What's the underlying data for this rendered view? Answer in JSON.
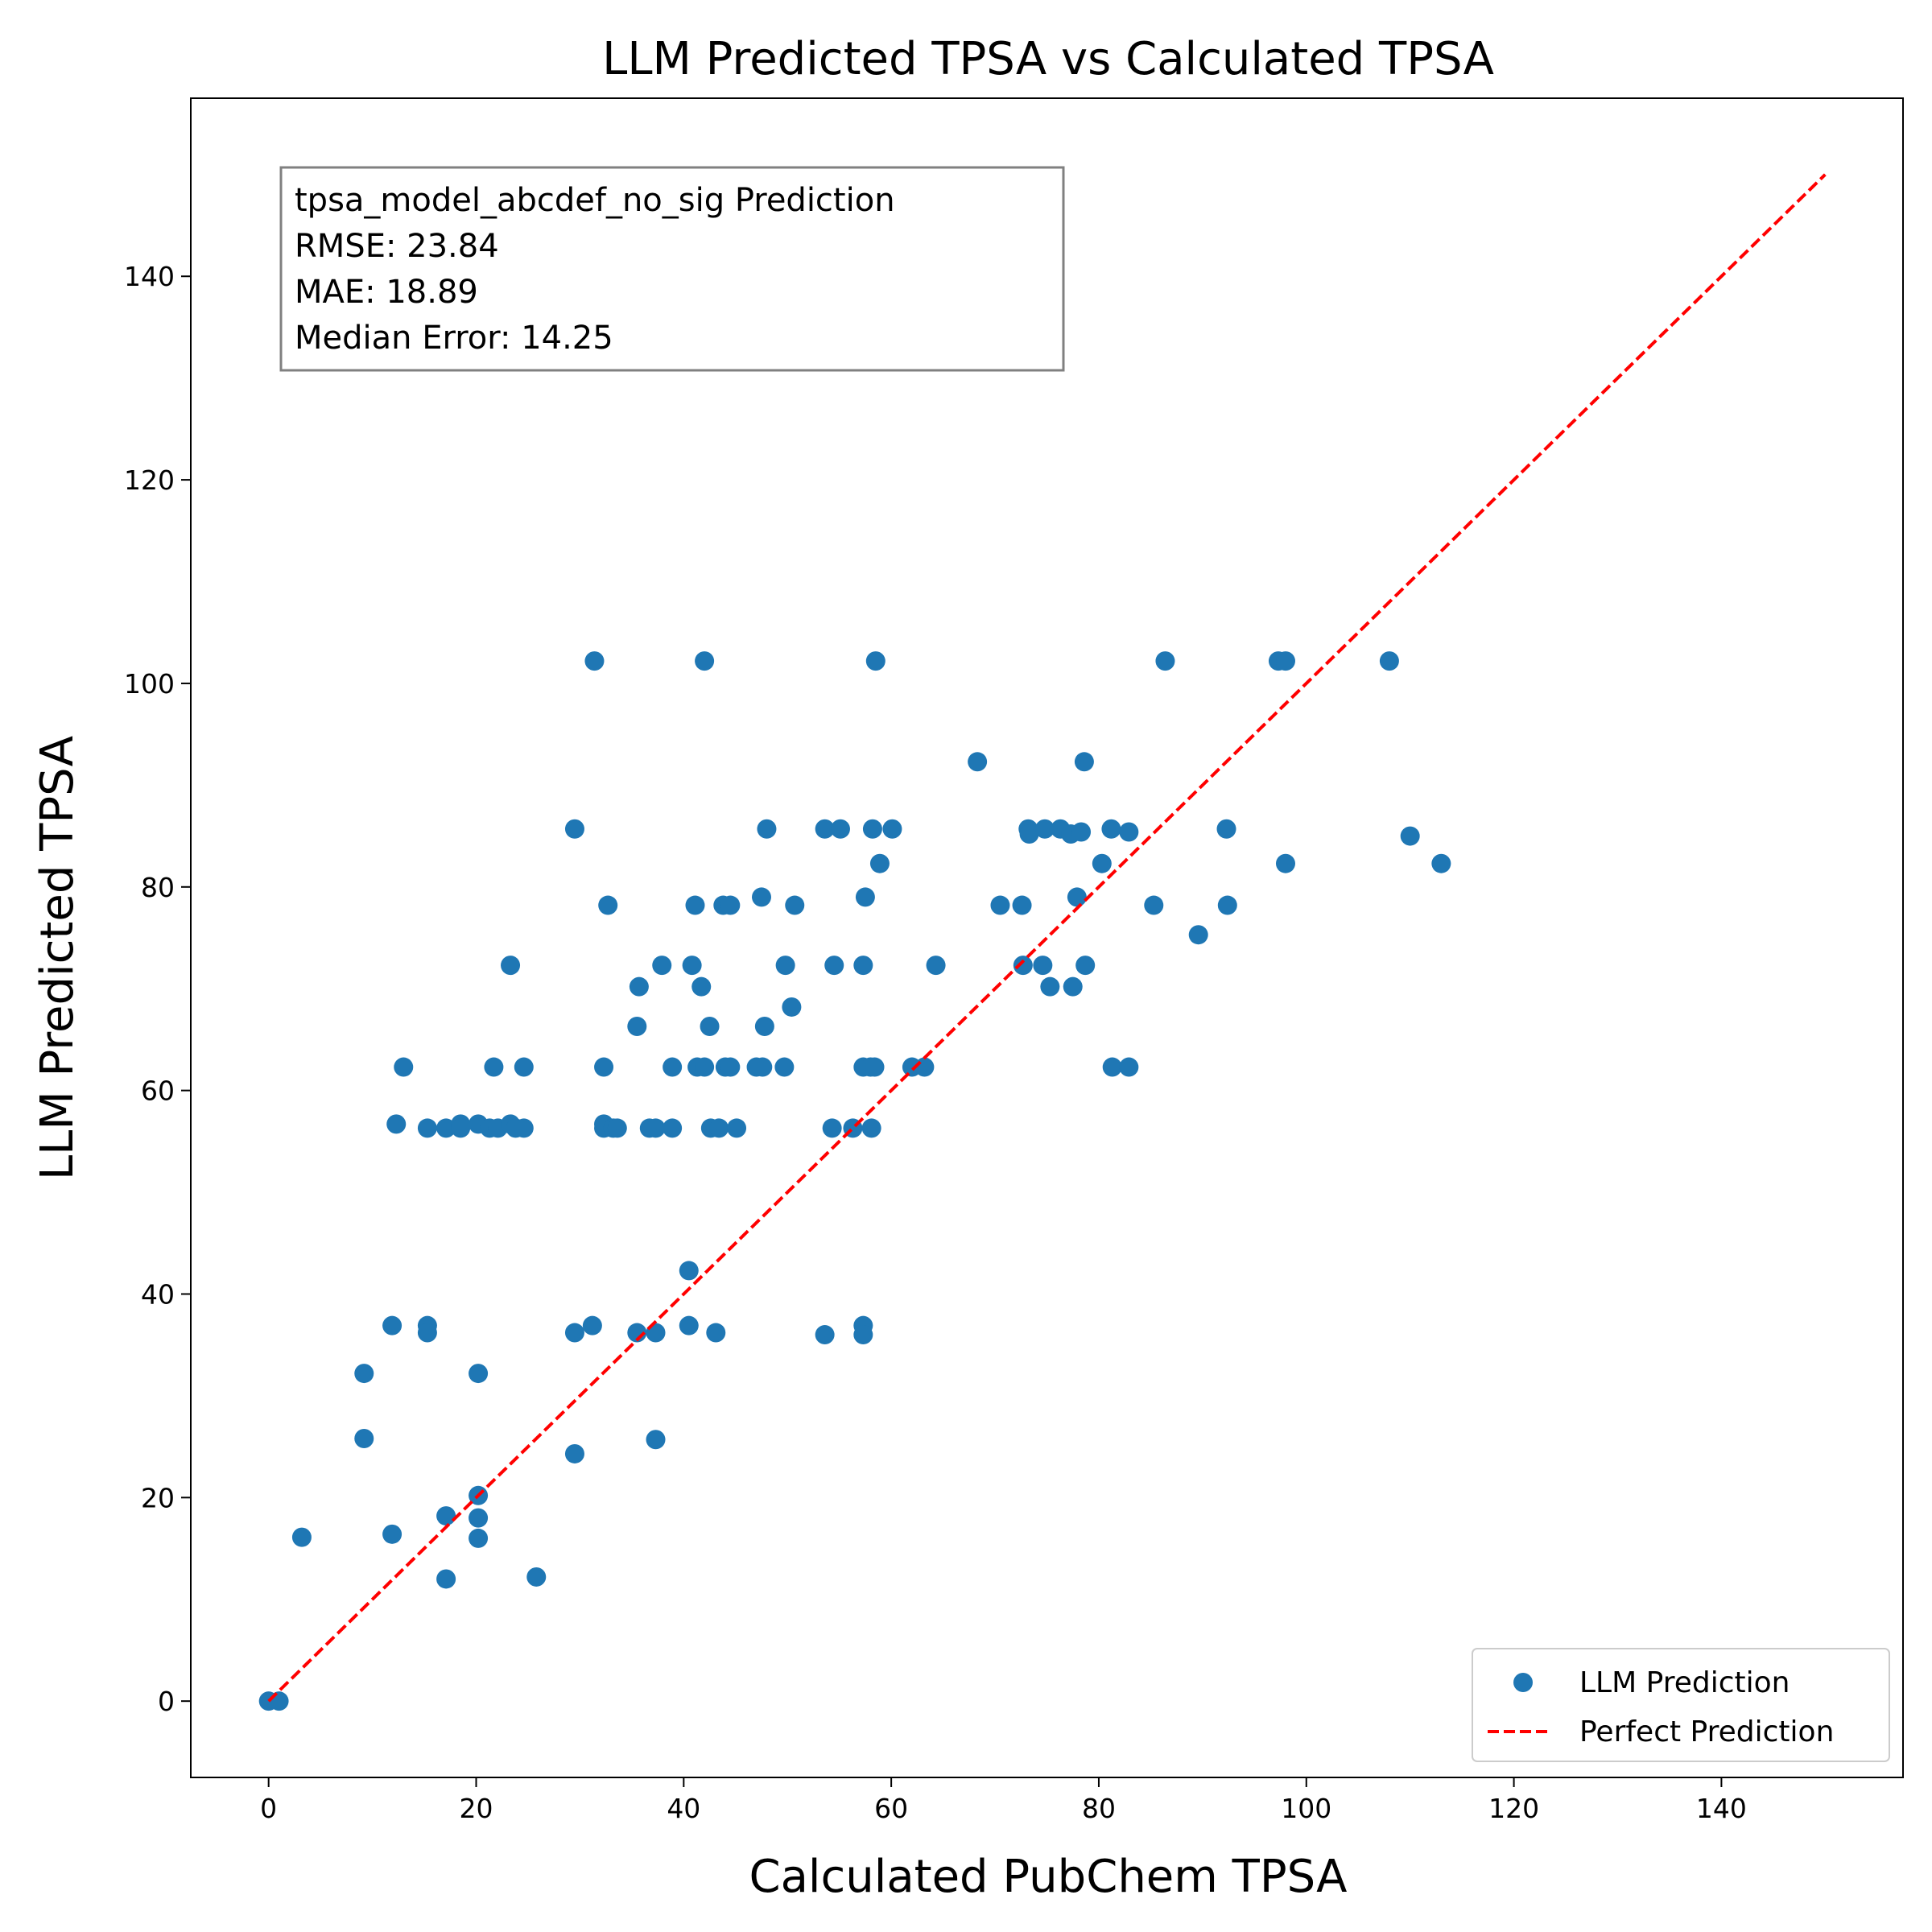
{
  "chart_data": {
    "type": "scatter",
    "title": "LLM Predicted TPSA vs Calculated TPSA",
    "xlabel": "Calculated PubChem TPSA",
    "ylabel": "LLM Predicted TPSA",
    "xlim": [
      -7.5,
      157.5
    ],
    "ylim": [
      -7.5,
      157.5
    ],
    "xticks": [
      0,
      20,
      40,
      60,
      80,
      100,
      120,
      140
    ],
    "yticks": [
      0,
      20,
      40,
      60,
      80,
      100,
      120,
      140
    ],
    "grid": false,
    "legend_position": "bottom-right",
    "stats_box": {
      "lines": [
        "tpsa_model_abcdef_no_sig Prediction",
        "RMSE: 23.84",
        "MAE: 18.89",
        "Median Error: 14.25"
      ]
    },
    "series": [
      {
        "name": "LLM Prediction",
        "kind": "scatter",
        "color": "#1f77b4",
        "points": [
          [
            0,
            0
          ],
          [
            1.0,
            0
          ],
          [
            3.2,
            16.1
          ],
          [
            9.2,
            32.2
          ],
          [
            9.2,
            25.8
          ],
          [
            11.9,
            36.9
          ],
          [
            11.9,
            16.4
          ],
          [
            12.3,
            56.7
          ],
          [
            13.0,
            62.3
          ],
          [
            15.3,
            56.3
          ],
          [
            15.3,
            36.9
          ],
          [
            15.3,
            36.2
          ],
          [
            17.1,
            56.3
          ],
          [
            17.1,
            18.2
          ],
          [
            17.1,
            12.0
          ],
          [
            18.5,
            56.7
          ],
          [
            18.5,
            56.3
          ],
          [
            20.2,
            56.7
          ],
          [
            20.2,
            32.2
          ],
          [
            20.2,
            20.2
          ],
          [
            20.2,
            18.0
          ],
          [
            20.2,
            16.0
          ],
          [
            21.3,
            56.3
          ],
          [
            21.7,
            62.3
          ],
          [
            22.1,
            56.3
          ],
          [
            23.3,
            72.3
          ],
          [
            23.3,
            56.7
          ],
          [
            23.8,
            56.3
          ],
          [
            24.6,
            62.3
          ],
          [
            24.6,
            56.3
          ],
          [
            25.8,
            12.2
          ],
          [
            29.5,
            85.7
          ],
          [
            29.5,
            36.2
          ],
          [
            29.5,
            24.3
          ],
          [
            31.2,
            36.9
          ],
          [
            31.4,
            102.2
          ],
          [
            32.3,
            62.3
          ],
          [
            32.3,
            56.7
          ],
          [
            32.3,
            56.3
          ],
          [
            32.7,
            78.2
          ],
          [
            33.2,
            56.3
          ],
          [
            33.6,
            56.3
          ],
          [
            35.5,
            36.2
          ],
          [
            35.5,
            66.3
          ],
          [
            35.7,
            70.2
          ],
          [
            36.7,
            56.3
          ],
          [
            37.3,
            56.3
          ],
          [
            37.3,
            36.2
          ],
          [
            37.3,
            25.7
          ],
          [
            37.9,
            72.3
          ],
          [
            38.9,
            62.3
          ],
          [
            38.9,
            56.3
          ],
          [
            40.5,
            42.3
          ],
          [
            40.5,
            36.9
          ],
          [
            40.8,
            72.3
          ],
          [
            41.1,
            78.2
          ],
          [
            41.3,
            62.3
          ],
          [
            41.7,
            70.2
          ],
          [
            42.0,
            102.2
          ],
          [
            42.0,
            62.3
          ],
          [
            42.5,
            66.3
          ],
          [
            42.6,
            56.3
          ],
          [
            43.1,
            36.2
          ],
          [
            43.4,
            56.3
          ],
          [
            43.8,
            78.2
          ],
          [
            44.0,
            62.3
          ],
          [
            44.5,
            78.2
          ],
          [
            44.5,
            62.3
          ],
          [
            45.1,
            56.3
          ],
          [
            47.0,
            62.3
          ],
          [
            47.5,
            79.0
          ],
          [
            47.6,
            62.3
          ],
          [
            47.8,
            66.3
          ],
          [
            48.0,
            85.7
          ],
          [
            49.7,
            62.3
          ],
          [
            49.8,
            72.3
          ],
          [
            50.4,
            68.2
          ],
          [
            50.7,
            78.2
          ],
          [
            53.6,
            85.7
          ],
          [
            53.6,
            36.0
          ],
          [
            54.3,
            56.3
          ],
          [
            54.5,
            72.3
          ],
          [
            55.1,
            85.7
          ],
          [
            56.3,
            56.3
          ],
          [
            57.3,
            72.3
          ],
          [
            57.3,
            62.3
          ],
          [
            57.3,
            36.9
          ],
          [
            57.3,
            36.0
          ],
          [
            57.5,
            79.0
          ],
          [
            58.0,
            62.3
          ],
          [
            58.1,
            56.3
          ],
          [
            58.2,
            85.7
          ],
          [
            58.4,
            62.3
          ],
          [
            58.5,
            102.2
          ],
          [
            58.9,
            82.3
          ],
          [
            60.1,
            85.7
          ],
          [
            62.0,
            62.3
          ],
          [
            63.2,
            62.3
          ],
          [
            64.3,
            72.3
          ],
          [
            68.3,
            92.3
          ],
          [
            70.5,
            78.2
          ],
          [
            72.6,
            78.2
          ],
          [
            72.7,
            72.3
          ],
          [
            73.2,
            85.7
          ],
          [
            73.3,
            85.2
          ],
          [
            74.6,
            72.3
          ],
          [
            74.8,
            85.7
          ],
          [
            75.3,
            70.2
          ],
          [
            76.3,
            85.7
          ],
          [
            77.3,
            85.2
          ],
          [
            77.5,
            70.2
          ],
          [
            77.9,
            79.0
          ],
          [
            78.3,
            85.4
          ],
          [
            78.6,
            92.3
          ],
          [
            78.7,
            72.3
          ],
          [
            80.3,
            82.3
          ],
          [
            81.2,
            85.7
          ],
          [
            81.3,
            62.3
          ],
          [
            82.9,
            62.3
          ],
          [
            82.9,
            85.4
          ],
          [
            85.3,
            78.2
          ],
          [
            86.4,
            102.2
          ],
          [
            89.6,
            75.3
          ],
          [
            92.3,
            85.7
          ],
          [
            92.4,
            78.2
          ],
          [
            97.3,
            102.2
          ],
          [
            98.0,
            102.2
          ],
          [
            98.0,
            82.3
          ],
          [
            108.0,
            102.2
          ],
          [
            110.0,
            85.0
          ],
          [
            113.0,
            82.3
          ]
        ]
      },
      {
        "name": "Perfect Prediction",
        "kind": "line",
        "style": "dashed",
        "color": "#ff0000",
        "points": [
          [
            0,
            0
          ],
          [
            150,
            150
          ]
        ]
      }
    ]
  }
}
